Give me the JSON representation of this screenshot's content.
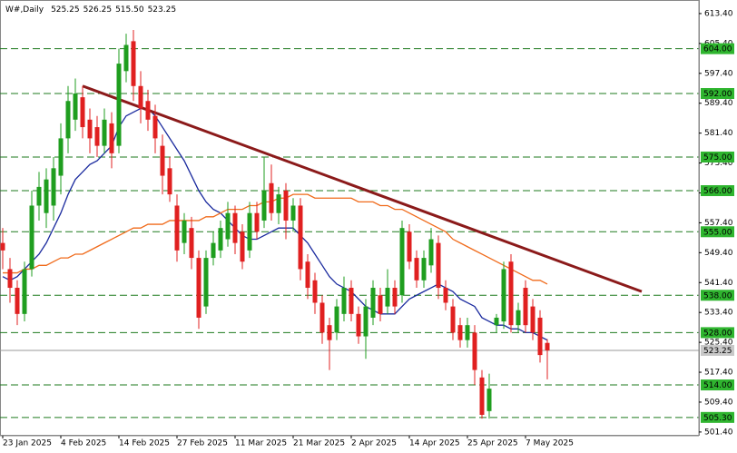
{
  "chart_data": {
    "type": "candlestick",
    "symbol": "W#,Daily",
    "ohlc_labels": [
      "525.25",
      "526.25",
      "515.50",
      "523.25"
    ],
    "categories": [
      "23 Jan 2025",
      null,
      null,
      null,
      null,
      null,
      null,
      null,
      "4 Feb 2025",
      null,
      null,
      null,
      null,
      null,
      null,
      null,
      "14 Feb 2025",
      null,
      null,
      null,
      null,
      null,
      null,
      null,
      "27 Feb 2025",
      null,
      null,
      null,
      null,
      null,
      null,
      null,
      "11 Mar 2025",
      null,
      null,
      null,
      null,
      null,
      null,
      null,
      "21 Mar 2025",
      null,
      null,
      null,
      null,
      null,
      null,
      null,
      "2 Apr 2025",
      null,
      null,
      null,
      null,
      null,
      null,
      null,
      "14 Apr 2025",
      null,
      null,
      null,
      null,
      null,
      null,
      null,
      "25 Apr 2025",
      null,
      null,
      null,
      null,
      null,
      null,
      null,
      "7 May 2025",
      null,
      null,
      null
    ],
    "open": [
      552,
      545,
      540,
      533,
      545,
      562,
      560,
      562,
      570,
      580,
      585,
      591,
      585,
      583,
      578,
      584,
      578,
      598,
      606,
      594,
      590,
      586,
      578,
      572,
      562,
      552,
      556,
      548,
      535,
      548,
      550,
      553,
      560,
      555,
      550,
      560,
      558,
      568,
      560,
      566,
      558,
      562,
      547,
      542,
      536,
      530,
      528,
      533,
      540,
      533,
      527,
      532,
      538,
      535,
      540,
      538,
      555,
      548,
      542,
      546,
      552,
      540,
      535,
      530,
      526,
      528,
      516,
      507,
      530,
      531,
      547,
      530,
      540,
      535,
      532,
      525.25
    ],
    "high": [
      556,
      548,
      542,
      547,
      566,
      571,
      572,
      575,
      584,
      594,
      596,
      594,
      588,
      586,
      588,
      587,
      604,
      608,
      609,
      598,
      593,
      589,
      581,
      575,
      565,
      560,
      559,
      550,
      550,
      555,
      558,
      563,
      562,
      557,
      563,
      563,
      575,
      573,
      567,
      568,
      564,
      564,
      549,
      544,
      538,
      532,
      537,
      543,
      542,
      535,
      537,
      542,
      540,
      545,
      542,
      558,
      557,
      550,
      550,
      556,
      554,
      542,
      537,
      532,
      532,
      530,
      518,
      517,
      533,
      547,
      549,
      536,
      542,
      537,
      534,
      526.25
    ],
    "low": [
      545,
      536,
      530,
      531,
      543,
      558,
      556,
      558,
      565,
      576,
      582,
      580,
      576,
      575,
      576,
      572,
      576,
      595,
      590,
      584,
      582,
      576,
      565,
      563,
      547,
      549,
      545,
      529,
      533,
      546,
      548,
      551,
      549,
      545,
      548,
      553,
      556,
      558,
      557,
      553,
      555,
      542,
      537,
      533,
      525,
      518,
      526,
      531,
      531,
      525,
      521,
      530,
      531,
      533,
      533,
      536,
      545,
      540,
      540,
      544,
      537,
      534,
      526,
      524,
      524,
      514,
      505,
      505,
      528,
      529,
      528,
      528,
      528,
      526,
      520,
      515.5
    ],
    "close": [
      550,
      540,
      533,
      545,
      562,
      567,
      569,
      572,
      580,
      590,
      592,
      583,
      580,
      578,
      585,
      576,
      600,
      605,
      594,
      588,
      585,
      580,
      570,
      565,
      550,
      558,
      548,
      532,
      548,
      552,
      556,
      560,
      552,
      547,
      560,
      555,
      566,
      560,
      565,
      558,
      562,
      545,
      540,
      536,
      528,
      526,
      535,
      540,
      533,
      527,
      535,
      540,
      533,
      540,
      535,
      556,
      547,
      542,
      548,
      553,
      540,
      536,
      528,
      526,
      530,
      518,
      506,
      513,
      532,
      545,
      530,
      534,
      530,
      528,
      522,
      523.25
    ],
    "up_color": "#1f9e1f",
    "down_color": "#e02020",
    "series": [
      {
        "color": "#1a2a9e",
        "values": [
          543,
          542,
          543,
          545,
          547,
          549,
          552,
          556,
          560,
          565,
          569,
          571,
          573,
          574,
          576,
          578,
          583,
          586,
          587,
          588,
          588,
          586,
          583,
          580,
          577,
          574,
          570,
          566,
          563,
          561,
          560,
          558,
          556,
          554,
          553,
          553,
          554,
          555,
          556,
          556,
          556,
          554,
          552,
          549,
          546,
          543,
          541,
          540,
          539,
          537,
          535,
          534,
          533,
          533,
          533,
          535,
          537,
          538,
          539,
          540,
          541,
          540,
          539,
          537,
          536,
          535,
          532,
          531,
          530,
          530,
          529,
          529,
          528,
          528,
          527,
          526
        ]
      },
      {
        "color": "#f06a1a",
        "values": [
          544,
          544,
          544,
          545,
          545,
          546,
          546,
          547,
          548,
          548,
          549,
          549,
          550,
          551,
          552,
          553,
          554,
          555,
          556,
          556,
          557,
          557,
          557,
          558,
          558,
          558,
          558,
          558,
          559,
          559,
          560,
          561,
          561,
          561,
          562,
          562,
          563,
          563,
          564,
          564,
          565,
          565,
          565,
          564,
          564,
          564,
          564,
          564,
          564,
          563,
          563,
          563,
          562,
          562,
          561,
          561,
          560,
          559,
          558,
          557,
          556,
          555,
          553,
          552,
          551,
          550,
          549,
          548,
          547,
          546,
          545,
          544,
          543,
          542,
          542,
          541
        ]
      }
    ],
    "trendline": {
      "color": "#8b1a1a",
      "x": [
        11,
        88
      ],
      "y": [
        594,
        539
      ]
    },
    "levels": {
      "color": "#1e7a1e",
      "values": [
        {
          "value": 604,
          "label": "604.00"
        },
        {
          "value": 592,
          "label": "592.00"
        },
        {
          "value": 575,
          "label": "575.00"
        },
        {
          "value": 566,
          "label": "566.00"
        },
        {
          "value": 555,
          "label": "555.00"
        },
        {
          "value": 538,
          "label": "538.00"
        },
        {
          "value": 528,
          "label": "528.00"
        },
        {
          "value": 514,
          "label": "514.00"
        },
        {
          "value": 505.3,
          "label": "505.30"
        }
      ]
    },
    "current_price": 523.25,
    "ylim": [
      500.4,
      616.3
    ],
    "yticks": [
      {
        "value": 613.4,
        "label": "613.40"
      },
      {
        "value": 605.4,
        "label": "605.40"
      },
      {
        "value": 597.4,
        "label": "597.40"
      },
      {
        "value": 589.4,
        "label": "589.40"
      },
      {
        "value": 581.4,
        "label": "581.40"
      },
      {
        "value": 573.4,
        "label": "573.40"
      },
      {
        "value": 565.4,
        "label": "565.40"
      },
      {
        "value": 557.4,
        "label": "557.40"
      },
      {
        "value": 549.4,
        "label": "549.40"
      },
      {
        "value": 541.4,
        "label": "541.40"
      },
      {
        "value": 533.4,
        "label": "533.40"
      },
      {
        "value": 525.4,
        "label": "525.40"
      },
      {
        "value": 517.4,
        "label": "517.40"
      },
      {
        "value": 509.4,
        "label": "509.40"
      },
      {
        "value": 501.4,
        "label": "501.40"
      }
    ]
  }
}
